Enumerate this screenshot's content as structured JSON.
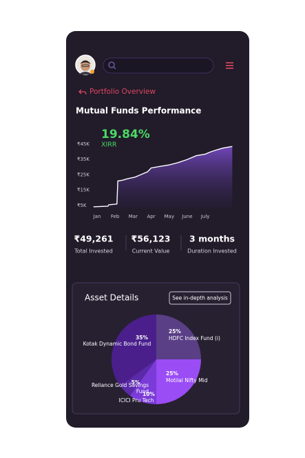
{
  "header": {
    "nav_link": "Portfolio Overview"
  },
  "chart_data": [
    {
      "type": "line",
      "title": "Mutual Funds Performance",
      "annotation": "19.84%",
      "annotation_label": "XIRR",
      "color": "#ffffff",
      "x": [
        -0.2,
        0.6,
        0.65,
        1.1,
        1.15,
        1.4,
        1.7,
        2.1,
        2.4,
        2.8,
        3.0,
        3.5,
        4.0,
        4.5,
        5.0,
        5.5,
        6.0,
        6.3,
        6.7,
        7.0,
        7.5
      ],
      "values": [
        4200,
        4600,
        5500,
        6000,
        21000,
        21500,
        22500,
        23500,
        25000,
        27000,
        29500,
        30500,
        31500,
        33000,
        35000,
        37500,
        38500,
        40000,
        41500,
        42500,
        43500
      ],
      "xlim": [
        -0.23,
        7.6
      ],
      "xticks": [
        {
          "value": 0,
          "label": "Jan"
        },
        {
          "value": 1,
          "label": "Feb"
        },
        {
          "value": 2,
          "label": "Mar"
        },
        {
          "value": 3,
          "label": "Apr"
        },
        {
          "value": 4,
          "label": "May"
        },
        {
          "value": 5,
          "label": "June"
        },
        {
          "value": 6,
          "label": "July"
        }
      ],
      "ylim": [
        3000,
        48000
      ],
      "yticks": [
        {
          "value": 5000,
          "label": "₹5K"
        },
        {
          "value": 15000,
          "label": "₹15K"
        },
        {
          "value": 25000,
          "label": "₹25K"
        },
        {
          "value": 35000,
          "label": "₹35K"
        },
        {
          "value": 45000,
          "label": "₹45K"
        }
      ],
      "grid": false
    },
    {
      "type": "pie",
      "title": "Asset Details",
      "button": "See in-depth analysis",
      "categories": [
        "HDFC Index Fund (i)",
        "Motilal Nifty Mid",
        "ICICI Pru Tech",
        "Reliance Gold Savings Fund",
        "Kotak Dynamic Bond Fund"
      ],
      "values": [
        25,
        25,
        10,
        5,
        35
      ],
      "value_labels": [
        "25%",
        "25%",
        "10%",
        "5%",
        "35%"
      ],
      "colors": [
        "#5a3f86",
        "#9a4cf5",
        "#7a3bd8",
        "#5b2aa8",
        "#4a1f8c"
      ]
    }
  ],
  "stats": [
    {
      "value": "₹49,261",
      "label": "Total Invested"
    },
    {
      "value": "₹56,123",
      "label": "Current Value"
    },
    {
      "value": "3 months",
      "label": "Duration Invested"
    }
  ]
}
